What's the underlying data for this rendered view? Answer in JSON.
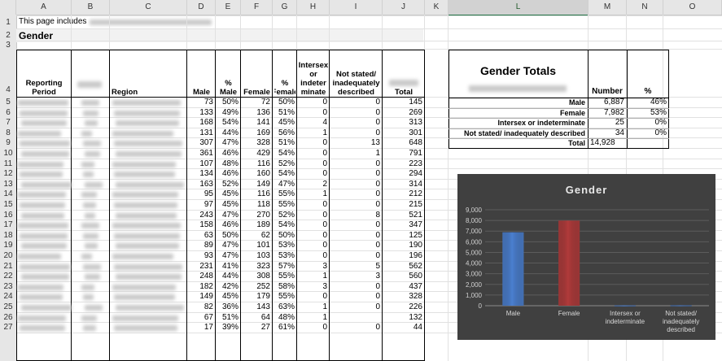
{
  "columns": [
    "A",
    "B",
    "C",
    "D",
    "E",
    "F",
    "G",
    "H",
    "I",
    "J",
    "K",
    "L",
    "M",
    "N",
    "O"
  ],
  "selected_column": "L",
  "row_numbers": [
    "1",
    "2",
    "3",
    "4",
    "5",
    "6",
    "7",
    "8",
    "9",
    "10",
    "11",
    "12",
    "13",
    "14",
    "15",
    "16",
    "17",
    "18",
    "19",
    "20",
    "21",
    "22",
    "23",
    "24",
    "25",
    "26",
    "27"
  ],
  "intro_text": "This page includes",
  "section_title": "Gender",
  "table_headers": {
    "reporting_period": "Reporting Period",
    "region": "Region",
    "male": "Male",
    "pct_male": "% Male",
    "female": "Female",
    "pct_female": "% Female",
    "intersex": "Intersex or indeter minate",
    "not_stated": "Not stated/ inadequately described",
    "total": "Total"
  },
  "rows": [
    {
      "male": "73",
      "pm": "50%",
      "female": "72",
      "pf": "50%",
      "inter": "0",
      "ns": "0",
      "total": "145"
    },
    {
      "male": "133",
      "pm": "49%",
      "female": "136",
      "pf": "51%",
      "inter": "0",
      "ns": "0",
      "total": "269"
    },
    {
      "male": "168",
      "pm": "54%",
      "female": "141",
      "pf": "45%",
      "inter": "4",
      "ns": "0",
      "total": "313"
    },
    {
      "male": "131",
      "pm": "44%",
      "female": "169",
      "pf": "56%",
      "inter": "1",
      "ns": "0",
      "total": "301"
    },
    {
      "male": "307",
      "pm": "47%",
      "female": "328",
      "pf": "51%",
      "inter": "0",
      "ns": "13",
      "total": "648"
    },
    {
      "male": "361",
      "pm": "46%",
      "female": "429",
      "pf": "54%",
      "inter": "0",
      "ns": "1",
      "total": "791"
    },
    {
      "male": "107",
      "pm": "48%",
      "female": "116",
      "pf": "52%",
      "inter": "0",
      "ns": "0",
      "total": "223"
    },
    {
      "male": "134",
      "pm": "46%",
      "female": "160",
      "pf": "54%",
      "inter": "0",
      "ns": "0",
      "total": "294"
    },
    {
      "male": "163",
      "pm": "52%",
      "female": "149",
      "pf": "47%",
      "inter": "2",
      "ns": "0",
      "total": "314"
    },
    {
      "male": "95",
      "pm": "45%",
      "female": "116",
      "pf": "55%",
      "inter": "1",
      "ns": "0",
      "total": "212"
    },
    {
      "male": "97",
      "pm": "45%",
      "female": "118",
      "pf": "55%",
      "inter": "0",
      "ns": "0",
      "total": "215"
    },
    {
      "male": "243",
      "pm": "47%",
      "female": "270",
      "pf": "52%",
      "inter": "0",
      "ns": "8",
      "total": "521"
    },
    {
      "male": "158",
      "pm": "46%",
      "female": "189",
      "pf": "54%",
      "inter": "0",
      "ns": "0",
      "total": "347"
    },
    {
      "male": "63",
      "pm": "50%",
      "female": "62",
      "pf": "50%",
      "inter": "0",
      "ns": "0",
      "total": "125"
    },
    {
      "male": "89",
      "pm": "47%",
      "female": "101",
      "pf": "53%",
      "inter": "0",
      "ns": "0",
      "total": "190"
    },
    {
      "male": "93",
      "pm": "47%",
      "female": "103",
      "pf": "53%",
      "inter": "0",
      "ns": "0",
      "total": "196"
    },
    {
      "male": "231",
      "pm": "41%",
      "female": "323",
      "pf": "57%",
      "inter": "3",
      "ns": "5",
      "total": "562"
    },
    {
      "male": "248",
      "pm": "44%",
      "female": "308",
      "pf": "55%",
      "inter": "1",
      "ns": "3",
      "total": "560"
    },
    {
      "male": "182",
      "pm": "42%",
      "female": "252",
      "pf": "58%",
      "inter": "3",
      "ns": "0",
      "total": "437"
    },
    {
      "male": "149",
      "pm": "45%",
      "female": "179",
      "pf": "55%",
      "inter": "0",
      "ns": "0",
      "total": "328"
    },
    {
      "male": "82",
      "pm": "36%",
      "female": "143",
      "pf": "63%",
      "inter": "1",
      "ns": "0",
      "total": "226"
    },
    {
      "male": "67",
      "pm": "51%",
      "female": "64",
      "pf": "48%",
      "inter": "1",
      "ns": "",
      "total": "132"
    },
    {
      "male": "17",
      "pm": "39%",
      "female": "27",
      "pf": "61%",
      "inter": "0",
      "ns": "0",
      "total": "44"
    }
  ],
  "totals_box": {
    "title": "Gender Totals",
    "col_number": "Number",
    "col_pct": "%",
    "rows": [
      {
        "label": "Male",
        "number": "6,887",
        "pct": "46%"
      },
      {
        "label": "Female",
        "number": "7,982",
        "pct": "53%"
      },
      {
        "label": "Intersex or indeterminate",
        "number": "25",
        "pct": "0%"
      },
      {
        "label": "Not stated/ inadequately described",
        "number": "34",
        "pct": "0%"
      }
    ],
    "total_label": "Total",
    "total_value": "14,928"
  },
  "chart_data": {
    "type": "bar",
    "title": "Gender",
    "categories": [
      "Male",
      "Female",
      "Intersex or indeterminate",
      "Not stated/ inadequately described"
    ],
    "values": [
      6887,
      7982,
      25,
      34
    ],
    "yticks": [
      "9,000",
      "8,000",
      "7,000",
      "6,000",
      "5,000",
      "4,000",
      "3,000",
      "2,000",
      "1,000",
      "0"
    ],
    "ylim": [
      0,
      9000
    ],
    "bar_colors": [
      "#4a7fd0",
      "#b13a3a",
      "#4a7fd0",
      "#4a7fd0"
    ],
    "background": "#404040",
    "grid": true,
    "legend": "none"
  }
}
